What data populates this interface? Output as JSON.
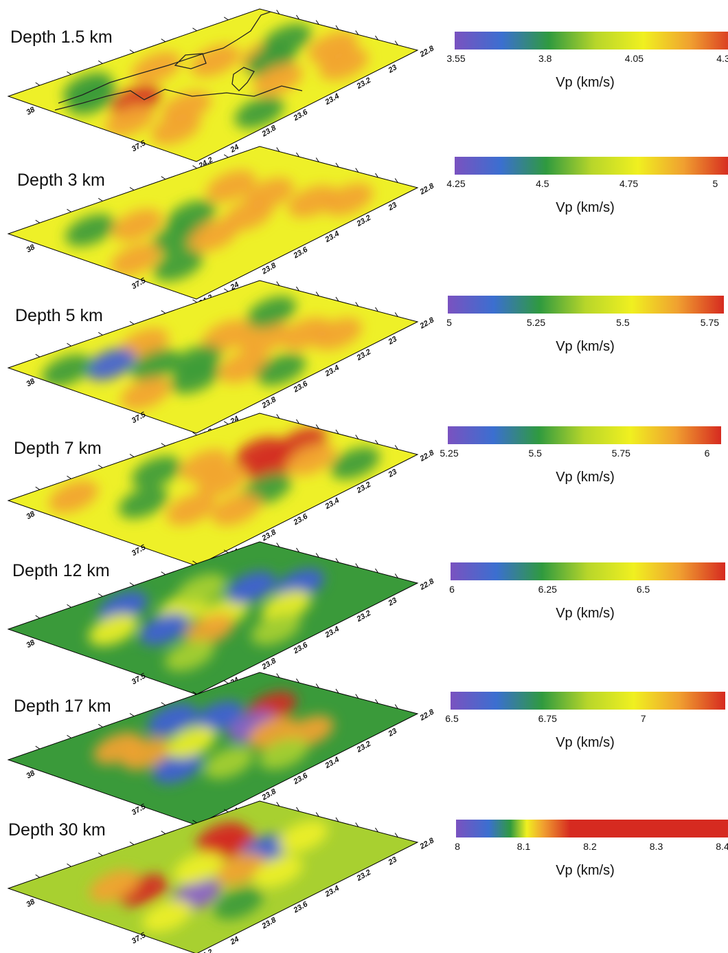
{
  "colors": {
    "ramp": [
      "#7a52c0",
      "#3b6fd0",
      "#2f9a3f",
      "#b8d62a",
      "#f0f020",
      "#f0a030",
      "#d62a20"
    ],
    "palette": {
      "blue": "#3f5fd6",
      "violet": "#8a60cc",
      "green": "#3a9a3a",
      "lightgreen": "#a8d030",
      "yellow": "#eef028",
      "orange": "#f2a232",
      "red": "#d42a22"
    }
  },
  "colorbar_title": "Vp (km/s)",
  "axis_ticks": {
    "longitude": [
      "22.8",
      "23",
      "23.2",
      "23.4",
      "23.6",
      "23.8",
      "24",
      "24.2"
    ],
    "latitude": [
      "37.5",
      "38"
    ]
  },
  "layers": [
    {
      "label": "Depth 1.5 km",
      "colorbar_ticks": [
        "3.55",
        "3.8",
        "4.05",
        "4.3"
      ],
      "background": "yellow",
      "coastline": true,
      "anomalies": [
        {
          "u": 0.2,
          "v": 0.55,
          "c": "orange"
        },
        {
          "u": 0.33,
          "v": 0.4,
          "c": "orange"
        },
        {
          "u": 0.46,
          "v": 0.28,
          "c": "orange"
        },
        {
          "u": 0.6,
          "v": 0.72,
          "c": "orange"
        },
        {
          "u": 0.4,
          "v": 0.78,
          "c": "red"
        },
        {
          "u": 0.52,
          "v": 0.9,
          "c": "orange"
        },
        {
          "u": 0.16,
          "v": 0.8,
          "c": "green"
        },
        {
          "u": 0.25,
          "v": 0.85,
          "c": "green"
        },
        {
          "u": 0.4,
          "v": 0.15,
          "c": "green"
        },
        {
          "u": 0.52,
          "v": 0.3,
          "c": "green"
        },
        {
          "u": 0.7,
          "v": 0.4,
          "c": "orange"
        },
        {
          "u": 0.82,
          "v": 0.2,
          "c": "orange"
        },
        {
          "u": 0.72,
          "v": 0.86,
          "c": "orange"
        },
        {
          "u": 0.64,
          "v": 0.12,
          "c": "orange"
        },
        {
          "u": 0.88,
          "v": 0.62,
          "c": "green"
        }
      ]
    },
    {
      "label": "Depth 3 km",
      "colorbar_ticks": [
        "4.25",
        "4.5",
        "4.75",
        "5"
      ],
      "background": "yellow",
      "coastline": false,
      "anomalies": [
        {
          "u": 0.48,
          "v": 0.28,
          "c": "orange"
        },
        {
          "u": 0.58,
          "v": 0.44,
          "c": "orange"
        },
        {
          "u": 0.7,
          "v": 0.25,
          "c": "orange"
        },
        {
          "u": 0.82,
          "v": 0.18,
          "c": "orange"
        },
        {
          "u": 0.4,
          "v": 0.55,
          "c": "green"
        },
        {
          "u": 0.3,
          "v": 0.7,
          "c": "orange"
        },
        {
          "u": 0.2,
          "v": 0.82,
          "c": "green"
        },
        {
          "u": 0.52,
          "v": 0.7,
          "c": "green"
        },
        {
          "u": 0.62,
          "v": 0.62,
          "c": "orange"
        },
        {
          "u": 0.28,
          "v": 0.3,
          "c": "orange"
        },
        {
          "u": 0.55,
          "v": 0.9,
          "c": "orange"
        },
        {
          "u": 0.72,
          "v": 0.85,
          "c": "green"
        }
      ]
    },
    {
      "label": "Depth 5 km",
      "colorbar_ticks": [
        "5",
        "5.25",
        "5.5",
        "5.75"
      ],
      "background": "yellow",
      "coastline": false,
      "anomalies": [
        {
          "u": 0.2,
          "v": 0.6,
          "c": "orange"
        },
        {
          "u": 0.26,
          "v": 0.78,
          "c": "blue"
        },
        {
          "u": 0.18,
          "v": 0.9,
          "c": "green"
        },
        {
          "u": 0.4,
          "v": 0.4,
          "c": "orange"
        },
        {
          "u": 0.55,
          "v": 0.35,
          "c": "orange"
        },
        {
          "u": 0.66,
          "v": 0.25,
          "c": "orange"
        },
        {
          "u": 0.78,
          "v": 0.2,
          "c": "orange"
        },
        {
          "u": 0.5,
          "v": 0.6,
          "c": "green"
        },
        {
          "u": 0.62,
          "v": 0.7,
          "c": "green"
        },
        {
          "u": 0.4,
          "v": 0.7,
          "c": "green"
        },
        {
          "u": 0.7,
          "v": 0.55,
          "c": "orange"
        },
        {
          "u": 0.35,
          "v": 0.18,
          "c": "green"
        },
        {
          "u": 0.85,
          "v": 0.5,
          "c": "green"
        },
        {
          "u": 0.58,
          "v": 0.88,
          "c": "orange"
        }
      ]
    },
    {
      "label": "Depth 7 km",
      "colorbar_ticks": [
        "5.25",
        "5.5",
        "5.75",
        "6"
      ],
      "background": "yellow",
      "coastline": false,
      "anomalies": [
        {
          "u": 0.38,
          "v": 0.25,
          "c": "red"
        },
        {
          "u": 0.52,
          "v": 0.3,
          "c": "red"
        },
        {
          "u": 0.45,
          "v": 0.12,
          "c": "red"
        },
        {
          "u": 0.62,
          "v": 0.2,
          "c": "orange"
        },
        {
          "u": 0.3,
          "v": 0.42,
          "c": "orange"
        },
        {
          "u": 0.2,
          "v": 0.55,
          "c": "green"
        },
        {
          "u": 0.48,
          "v": 0.48,
          "c": "orange"
        },
        {
          "u": 0.4,
          "v": 0.75,
          "c": "green"
        },
        {
          "u": 0.6,
          "v": 0.7,
          "c": "orange"
        },
        {
          "u": 0.7,
          "v": 0.45,
          "c": "green"
        },
        {
          "u": 0.82,
          "v": 0.15,
          "c": "green"
        },
        {
          "u": 0.15,
          "v": 0.85,
          "c": "orange"
        },
        {
          "u": 0.75,
          "v": 0.62,
          "c": "orange"
        }
      ]
    },
    {
      "label": "Depth 12 km",
      "colorbar_ticks": [
        "6",
        "6.25",
        "6.5"
      ],
      "background": "green",
      "coastline": false,
      "anomalies": [
        {
          "u": 0.15,
          "v": 0.65,
          "c": "blue"
        },
        {
          "u": 0.35,
          "v": 0.55,
          "c": "yellow"
        },
        {
          "u": 0.45,
          "v": 0.7,
          "c": "blue"
        },
        {
          "u": 0.52,
          "v": 0.5,
          "c": "yellow"
        },
        {
          "u": 0.6,
          "v": 0.62,
          "c": "orange"
        },
        {
          "u": 0.4,
          "v": 0.3,
          "c": "blue"
        },
        {
          "u": 0.55,
          "v": 0.2,
          "c": "blue"
        },
        {
          "u": 0.68,
          "v": 0.35,
          "c": "yellow"
        },
        {
          "u": 0.3,
          "v": 0.8,
          "c": "yellow"
        },
        {
          "u": 0.72,
          "v": 0.8,
          "c": "lightgreen"
        },
        {
          "u": 0.25,
          "v": 0.4,
          "c": "lightgreen"
        },
        {
          "u": 0.82,
          "v": 0.5,
          "c": "lightgreen"
        }
      ]
    },
    {
      "label": "Depth 17 km",
      "colorbar_ticks": [
        "6.5",
        "6.75",
        "7"
      ],
      "background": "green",
      "coastline": false,
      "anomalies": [
        {
          "u": 0.38,
          "v": 0.2,
          "c": "red"
        },
        {
          "u": 0.28,
          "v": 0.35,
          "c": "blue"
        },
        {
          "u": 0.48,
          "v": 0.35,
          "c": "violet"
        },
        {
          "u": 0.6,
          "v": 0.35,
          "c": "orange"
        },
        {
          "u": 0.72,
          "v": 0.28,
          "c": "orange"
        },
        {
          "u": 0.22,
          "v": 0.72,
          "c": "orange"
        },
        {
          "u": 0.35,
          "v": 0.7,
          "c": "orange"
        },
        {
          "u": 0.55,
          "v": 0.72,
          "c": "blue"
        },
        {
          "u": 0.4,
          "v": 0.55,
          "c": "yellow"
        },
        {
          "u": 0.15,
          "v": 0.45,
          "c": "blue"
        },
        {
          "u": 0.68,
          "v": 0.6,
          "c": "lightgreen"
        },
        {
          "u": 0.8,
          "v": 0.45,
          "c": "lightgreen"
        }
      ]
    },
    {
      "label": "Depth 30 km",
      "colorbar_ticks": [
        "8",
        "8.1",
        "8.2",
        "8.3",
        "8.4"
      ],
      "background": "lightgreen",
      "coastline": false,
      "anomalies": [
        {
          "u": 0.3,
          "v": 0.32,
          "c": "red"
        },
        {
          "u": 0.22,
          "v": 0.3,
          "c": "red"
        },
        {
          "u": 0.48,
          "v": 0.3,
          "c": "blue"
        },
        {
          "u": 0.55,
          "v": 0.45,
          "c": "orange"
        },
        {
          "u": 0.6,
          "v": 0.68,
          "c": "violet"
        },
        {
          "u": 0.4,
          "v": 0.75,
          "c": "red"
        },
        {
          "u": 0.28,
          "v": 0.78,
          "c": "orange"
        },
        {
          "u": 0.4,
          "v": 0.52,
          "c": "yellow"
        },
        {
          "u": 0.7,
          "v": 0.4,
          "c": "yellow"
        },
        {
          "u": 0.5,
          "v": 0.15,
          "c": "yellow"
        },
        {
          "u": 0.8,
          "v": 0.65,
          "c": "green"
        },
        {
          "u": 0.66,
          "v": 0.85,
          "c": "yellow"
        }
      ]
    }
  ]
}
